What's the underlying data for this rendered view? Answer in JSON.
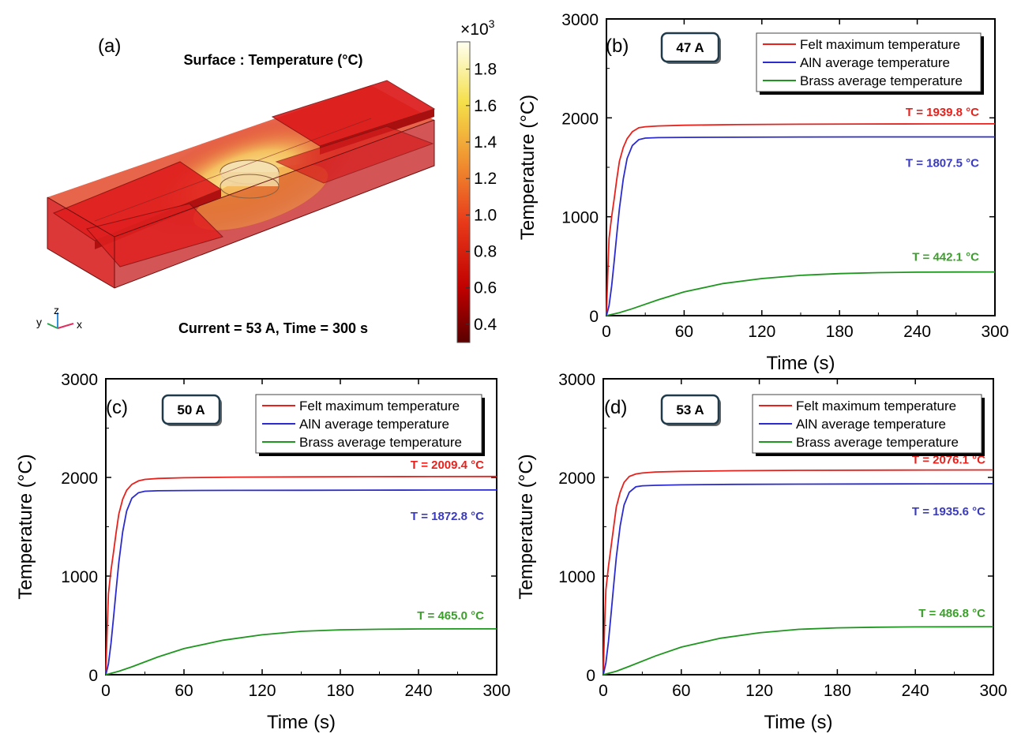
{
  "colors": {
    "felt": "#e8211c",
    "aln": "#2b2bd0",
    "brass": "#1f961f",
    "felt_ann": "#e8211c",
    "aln_ann": "#3a3ac0",
    "brass_ann": "#3aa02a"
  },
  "panel_a": {
    "label": "(a)",
    "title": "Surface : Temperature (°C)",
    "caption": "Current = 53 A, Time = 300 s",
    "colorbar": {
      "multiplier": "×10",
      "exponent": "3",
      "ticks": [
        "1.8",
        "1.6",
        "1.4",
        "1.2",
        "1.0",
        "0.8",
        "0.6",
        "0.4"
      ],
      "tick_values": [
        1.8,
        1.6,
        1.4,
        1.2,
        1.0,
        0.8,
        0.6,
        0.4
      ],
      "range": [
        0.3,
        1.95
      ]
    },
    "axes_triad": {
      "y": "y",
      "z": "z",
      "x": "x"
    }
  },
  "chart_data": [
    {
      "type": "line",
      "panel": "(b)",
      "badge": "47 A",
      "xlabel": "Time (s)",
      "ylabel": "Temperature (°C)",
      "xlim": [
        0,
        300
      ],
      "ylim": [
        0,
        3000
      ],
      "xticks": [
        0,
        60,
        120,
        180,
        240,
        300
      ],
      "yticks": [
        0,
        1000,
        2000,
        3000
      ],
      "legend_position": "top-right",
      "series": [
        {
          "name": "Felt maximum temperature",
          "color_key": "felt",
          "x": [
            0,
            1,
            2,
            4,
            6,
            8,
            10,
            13,
            16,
            20,
            25,
            30,
            40,
            60,
            100,
            150,
            200,
            250,
            300
          ],
          "y": [
            0,
            400,
            780,
            1000,
            1180,
            1380,
            1560,
            1700,
            1790,
            1860,
            1900,
            1910,
            1918,
            1925,
            1932,
            1936,
            1938,
            1939,
            1939.8
          ]
        },
        {
          "name": "AlN average temperature",
          "color_key": "aln",
          "x": [
            0,
            2,
            4,
            6,
            8,
            10,
            13,
            16,
            20,
            25,
            30,
            40,
            60,
            100,
            150,
            200,
            250,
            300
          ],
          "y": [
            0,
            100,
            300,
            550,
            820,
            1080,
            1380,
            1590,
            1720,
            1780,
            1795,
            1800,
            1802,
            1804,
            1806,
            1807,
            1807,
            1807.5
          ]
        },
        {
          "name": "Brass average temperature",
          "color_key": "brass",
          "x": [
            0,
            10,
            20,
            40,
            60,
            90,
            120,
            150,
            180,
            210,
            240,
            270,
            300
          ],
          "y": [
            0,
            30,
            70,
            160,
            240,
            325,
            375,
            408,
            425,
            435,
            440,
            441,
            442.1
          ]
        }
      ],
      "annotations": [
        {
          "text": "T = 1939.8 °C",
          "color_key": "felt_ann"
        },
        {
          "text": "T = 1807.5 °C",
          "color_key": "aln_ann"
        },
        {
          "text": "T = 442.1 °C",
          "color_key": "brass_ann"
        }
      ]
    },
    {
      "type": "line",
      "panel": "(c)",
      "badge": "50 A",
      "xlabel": "Time (s)",
      "ylabel": "Temperature (°C)",
      "xlim": [
        0,
        300
      ],
      "ylim": [
        0,
        3000
      ],
      "xticks": [
        0,
        60,
        120,
        180,
        240,
        300
      ],
      "yticks": [
        0,
        1000,
        2000,
        3000
      ],
      "legend_position": "top-right",
      "series": [
        {
          "name": "Felt maximum temperature",
          "color_key": "felt",
          "x": [
            0,
            1,
            2,
            4,
            6,
            8,
            10,
            13,
            16,
            20,
            25,
            30,
            40,
            60,
            100,
            150,
            200,
            250,
            300
          ],
          "y": [
            0,
            450,
            820,
            1060,
            1250,
            1450,
            1630,
            1780,
            1870,
            1930,
            1965,
            1980,
            1990,
            1997,
            2003,
            2006,
            2008,
            2009,
            2009.4
          ]
        },
        {
          "name": "AlN average temperature",
          "color_key": "aln",
          "x": [
            0,
            2,
            4,
            6,
            8,
            10,
            13,
            16,
            20,
            25,
            30,
            40,
            60,
            100,
            150,
            200,
            250,
            300
          ],
          "y": [
            0,
            110,
            320,
            590,
            870,
            1140,
            1450,
            1660,
            1790,
            1845,
            1860,
            1865,
            1867,
            1869,
            1870,
            1871,
            1872,
            1872.8
          ]
        },
        {
          "name": "Brass average temperature",
          "color_key": "brass",
          "x": [
            0,
            10,
            20,
            40,
            60,
            90,
            120,
            150,
            180,
            210,
            240,
            270,
            300
          ],
          "y": [
            0,
            35,
            80,
            180,
            265,
            350,
            405,
            440,
            455,
            461,
            464,
            465,
            465.0
          ]
        }
      ],
      "annotations": [
        {
          "text": "T = 2009.4 °C",
          "color_key": "felt_ann"
        },
        {
          "text": "T = 1872.8 °C",
          "color_key": "aln_ann"
        },
        {
          "text": "T = 465.0 °C",
          "color_key": "brass_ann"
        }
      ]
    },
    {
      "type": "line",
      "panel": "(d)",
      "badge": "53 A",
      "xlabel": "Time (s)",
      "ylabel": "Temperature (°C)",
      "xlim": [
        0,
        300
      ],
      "ylim": [
        0,
        3000
      ],
      "xticks": [
        0,
        60,
        120,
        180,
        240,
        300
      ],
      "yticks": [
        0,
        1000,
        2000,
        3000
      ],
      "legend_position": "top-right",
      "series": [
        {
          "name": "Felt maximum temperature",
          "color_key": "felt",
          "x": [
            0,
            1,
            2,
            4,
            6,
            8,
            10,
            13,
            16,
            20,
            25,
            30,
            40,
            60,
            100,
            150,
            200,
            250,
            300
          ],
          "y": [
            0,
            480,
            860,
            1100,
            1300,
            1500,
            1700,
            1850,
            1950,
            2010,
            2035,
            2045,
            2055,
            2062,
            2068,
            2072,
            2074,
            2075,
            2076.1
          ]
        },
        {
          "name": "AlN average temperature",
          "color_key": "aln",
          "x": [
            0,
            2,
            4,
            6,
            8,
            10,
            13,
            16,
            20,
            25,
            30,
            40,
            60,
            100,
            150,
            200,
            250,
            300
          ],
          "y": [
            0,
            120,
            340,
            620,
            910,
            1190,
            1510,
            1720,
            1850,
            1905,
            1915,
            1920,
            1925,
            1930,
            1932,
            1934,
            1935,
            1935.6
          ]
        },
        {
          "name": "Brass average temperature",
          "color_key": "brass",
          "x": [
            0,
            10,
            20,
            40,
            60,
            90,
            120,
            150,
            180,
            210,
            240,
            270,
            300
          ],
          "y": [
            0,
            35,
            85,
            190,
            280,
            370,
            425,
            460,
            475,
            482,
            485,
            486,
            486.8
          ]
        }
      ],
      "annotations": [
        {
          "text": "T = 2076.1 °C",
          "color_key": "felt_ann"
        },
        {
          "text": "T = 1935.6 °C",
          "color_key": "aln_ann"
        },
        {
          "text": "T = 486.8 °C",
          "color_key": "brass_ann"
        }
      ]
    }
  ]
}
